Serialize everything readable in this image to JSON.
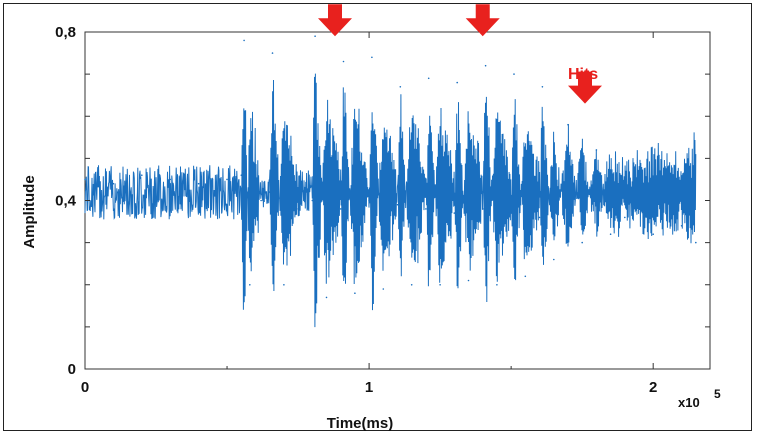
{
  "chart_data": {
    "type": "line",
    "title": "",
    "xlabel": "Time(ms)",
    "ylabel": "Amplitude",
    "xlim": [
      0,
      2.2
    ],
    "ylim": [
      0,
      0.8
    ],
    "x_ticks": [
      "0",
      "1",
      "2"
    ],
    "y_ticks": [
      "0",
      "0,4",
      "0,8"
    ],
    "x_multiplier": "x10",
    "x_multiplier_exp": "5",
    "grid": false,
    "series": [
      {
        "name": "",
        "color": "#1a6fbf",
        "x": [
          0.0,
          0.1,
          0.2,
          0.3,
          0.4,
          0.5,
          0.55,
          0.56,
          0.58,
          0.62,
          0.65,
          0.66,
          0.7,
          0.75,
          0.8,
          0.81,
          0.85,
          0.9,
          0.91,
          0.95,
          1.0,
          1.01,
          1.05,
          1.1,
          1.11,
          1.15,
          1.2,
          1.21,
          1.25,
          1.3,
          1.31,
          1.35,
          1.4,
          1.41,
          1.45,
          1.5,
          1.51,
          1.55,
          1.6,
          1.61,
          1.65,
          1.7,
          1.75,
          1.8,
          1.85,
          1.9,
          2.0,
          2.1,
          2.15
        ],
        "y": [
          0.45,
          0.44,
          0.46,
          0.45,
          0.44,
          0.45,
          0.46,
          0.78,
          0.2,
          0.4,
          0.42,
          0.75,
          0.2,
          0.38,
          0.4,
          0.79,
          0.17,
          0.38,
          0.73,
          0.18,
          0.4,
          0.74,
          0.19,
          0.39,
          0.67,
          0.2,
          0.38,
          0.69,
          0.2,
          0.37,
          0.68,
          0.21,
          0.38,
          0.72,
          0.2,
          0.37,
          0.7,
          0.22,
          0.36,
          0.67,
          0.26,
          0.58,
          0.3,
          0.52,
          0.32,
          0.36,
          0.32,
          0.34,
          0.3
        ]
      }
    ],
    "annotations": [
      {
        "text": "Hits",
        "x": 1.7,
        "y": 0.7,
        "color": "#e8211e"
      }
    ],
    "arrows": [
      {
        "x": 0.88,
        "y": 0.79,
        "color": "#e8211e"
      },
      {
        "x": 1.4,
        "y": 0.79,
        "color": "#e8211e"
      },
      {
        "x": 1.76,
        "y": 0.63,
        "color": "#e8211e"
      }
    ]
  }
}
